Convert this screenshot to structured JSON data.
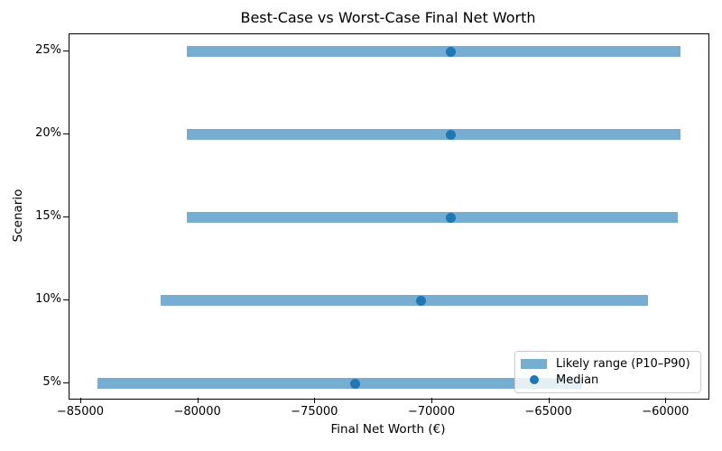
{
  "chart_data": {
    "type": "bar",
    "subtype": "horizontal-range-bars-with-median-points",
    "title": "Best-Case vs Worst-Case Final Net Worth",
    "xlabel": "Final Net Worth (€)",
    "ylabel": "Scenario",
    "categories_top_to_bottom": [
      "25%",
      "20%",
      "15%",
      "10%",
      "5%"
    ],
    "rows": [
      {
        "scenario": "25%",
        "p10": -80500,
        "median": -69200,
        "p90": -59400
      },
      {
        "scenario": "20%",
        "p10": -80500,
        "median": -69200,
        "p90": -59400
      },
      {
        "scenario": "15%",
        "p10": -80500,
        "median": -69200,
        "p90": -59500
      },
      {
        "scenario": "10%",
        "p10": -81600,
        "median": -70500,
        "p90": -60800
      },
      {
        "scenario": "5%",
        "p10": -84300,
        "median": -73300,
        "p90": -63600
      }
    ],
    "xlim": [
      -85500,
      -58200
    ],
    "xticks": [
      -85000,
      -80000,
      -75000,
      -70000,
      -65000,
      -60000
    ],
    "grid": false,
    "legend": {
      "position": "lower right",
      "entries": [
        {
          "label": "Likely range (P10–P90)",
          "marker": "patch",
          "color": "#78add2"
        },
        {
          "label": "Median",
          "marker": "dot",
          "color": "#1f77b4"
        }
      ]
    },
    "colors": {
      "range_bar": "#78add2",
      "median_point": "#1f77b4",
      "spine": "#000000",
      "background": "#ffffff"
    }
  }
}
